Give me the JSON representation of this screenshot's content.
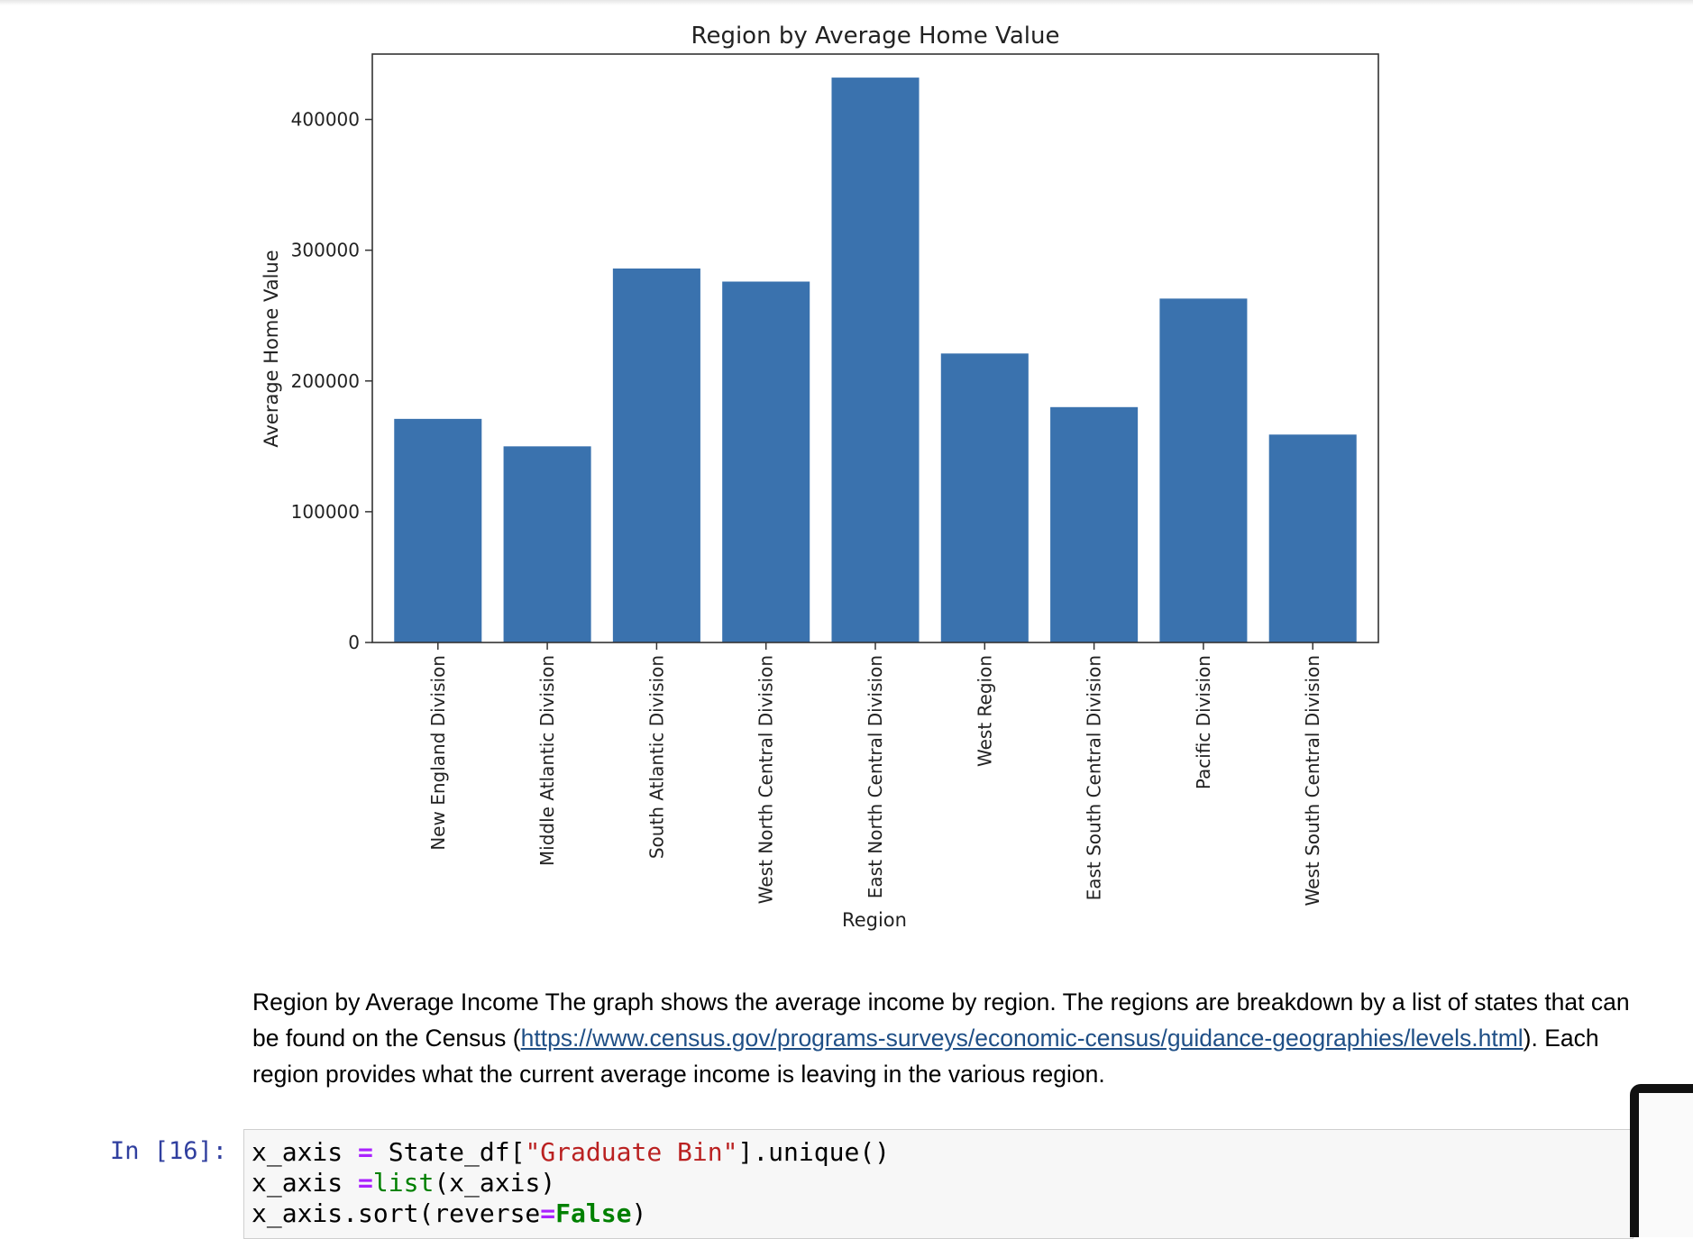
{
  "chart_data": {
    "type": "bar",
    "title": "Region by Average Home Value",
    "xlabel": "Region",
    "ylabel": "Average Home Value",
    "ylim": [
      0,
      450000
    ],
    "yticks": [
      0,
      100000,
      200000,
      300000,
      400000
    ],
    "ytick_labels": [
      "0",
      "100000",
      "200000",
      "300000",
      "400000"
    ],
    "grid": false,
    "bar_color": "#3a72ae",
    "categories": [
      "New England Division",
      "Middle Atlantic Division",
      "South Atlantic Division",
      "West North Central Division",
      "East North Central Division",
      "West Region",
      "East South Central Division",
      "Pacific Division",
      "West South Central Division"
    ],
    "values": [
      171000,
      150000,
      286000,
      276000,
      432000,
      221000,
      180000,
      263000,
      159000
    ]
  },
  "markdown": {
    "text_before": "Region by Average Income The graph shows the average income by region. The regions are breakdown by a list of states that can be found on the Census (",
    "link_text": "https://www.census.gov/programs-surveys/economic-census/guidance-geographies/levels.html",
    "text_after": "). Each region provides what the current average income is leaving in the various region."
  },
  "code_cell": {
    "prompt": "In [16]:",
    "line1": {
      "a": "x_axis ",
      "op": "=",
      "b": " State_df[",
      "str": "\"Graduate Bin\"",
      "c": "].unique()"
    },
    "line2": {
      "a": "x_axis ",
      "op": "=",
      "builtin": "list",
      "c": "(x_axis)"
    },
    "line3": {
      "a": "x_axis.sort(reverse",
      "op": "=",
      "kw": "False",
      "c": ")"
    }
  }
}
